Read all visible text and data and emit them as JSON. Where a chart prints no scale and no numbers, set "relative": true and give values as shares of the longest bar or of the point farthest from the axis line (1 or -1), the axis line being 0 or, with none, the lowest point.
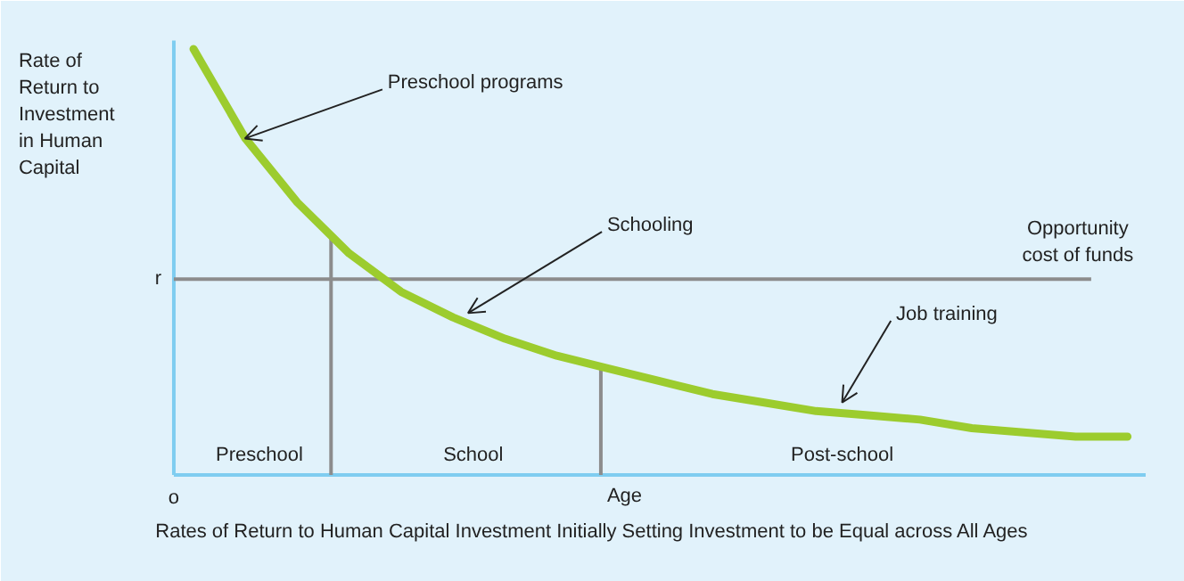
{
  "chart_data": {
    "type": "line",
    "relative": true,
    "title": "Rates of Return to Human Capital Investment Initially Setting Investment to be Equal across All Ages",
    "xlabel": "Age",
    "ylabel": "Rate of\nReturn to\nInvestment\nin Human\nCapital",
    "categories": [
      null,
      null,
      null,
      null,
      null,
      null,
      null,
      null,
      null,
      null,
      null,
      null,
      null,
      null,
      null,
      null,
      null,
      null,
      null
    ],
    "series": [
      {
        "color": "#9ccc2e",
        "values": [
          1.0,
          0.79,
          0.64,
          0.52,
          0.43,
          0.37,
          0.32,
          0.28,
          0.25,
          0.22,
          0.19,
          0.17,
          0.15,
          0.14,
          0.13,
          0.11,
          0.1,
          0.09,
          0.09
        ]
      }
    ],
    "ref_lines": [
      {
        "axis": "y",
        "value": 0.46,
        "label": "r",
        "color": "#8c8c8c"
      }
    ],
    "annotations": [
      "Preschool programs",
      "Schooling",
      "Job training",
      "Opportunity cost of funds",
      "o",
      "Preschool",
      "School",
      "Post-school"
    ],
    "marker": "none",
    "line_style": "solid"
  }
}
